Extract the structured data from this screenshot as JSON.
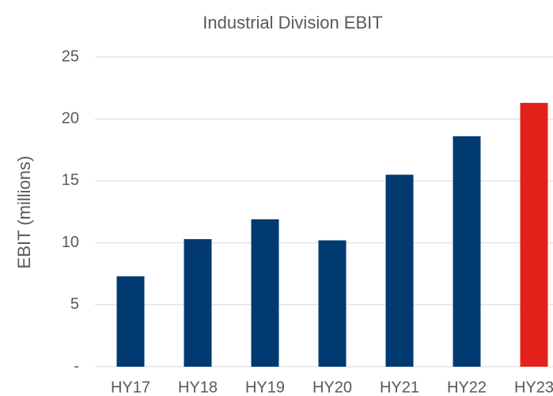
{
  "chart_data": {
    "type": "bar",
    "title": "Industrial Division EBIT",
    "y_label": "EBIT (millions)",
    "categories": [
      "HY17",
      "HY18",
      "HY19",
      "HY20",
      "HY21",
      "HY22",
      "HY23"
    ],
    "values": [
      7.3,
      10.3,
      11.9,
      10.2,
      15.5,
      18.6,
      21.3
    ],
    "colors": [
      "#003a70",
      "#003a70",
      "#003a70",
      "#003a70",
      "#003a70",
      "#003a70",
      "#e3231b"
    ],
    "ylim": [
      0,
      25
    ],
    "yticks": [
      {
        "value": 0,
        "label": "-"
      },
      5,
      10,
      15,
      20,
      25
    ],
    "grid": true
  }
}
